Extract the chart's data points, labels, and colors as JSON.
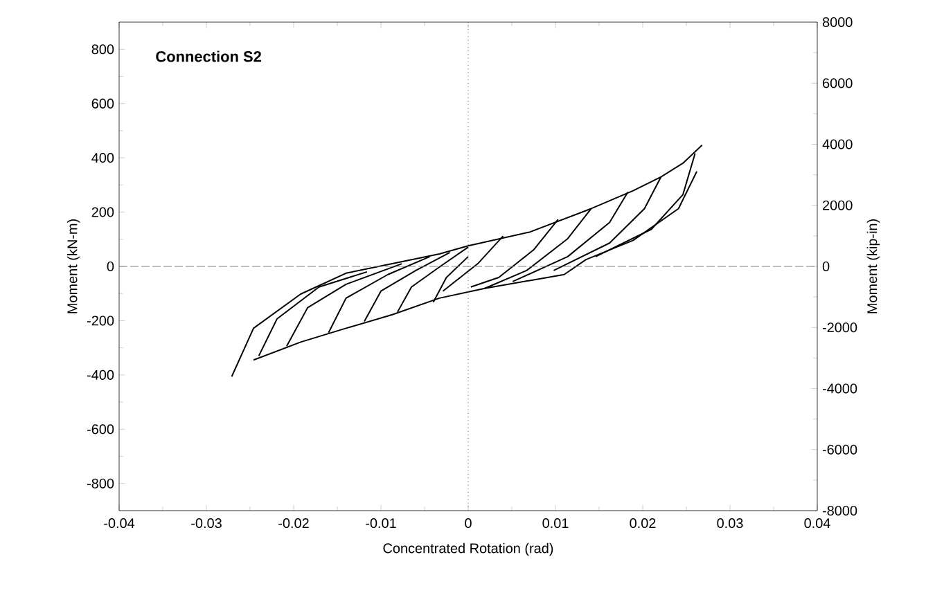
{
  "chart_data": {
    "type": "line",
    "xlabel": "Concentrated Rotation (rad)",
    "ylabel": "Moment (kN-m)",
    "y2label": "Moment (kip-in)",
    "annotations": [
      "Connection S2"
    ],
    "xlim": [
      -0.04,
      0.04
    ],
    "xticks": [
      -0.04,
      -0.03,
      -0.02,
      -0.01,
      0,
      0.01,
      0.02,
      0.03,
      0.04
    ],
    "ylim": [
      -900,
      900
    ],
    "yticks": [
      -800,
      -600,
      -400,
      -200,
      0,
      200,
      400,
      600,
      800
    ],
    "y2lim": [
      -8000,
      8000
    ],
    "y2ticks": [
      -8000,
      -6000,
      -4000,
      -2000,
      0,
      2000,
      4000,
      6000,
      8000
    ],
    "marker": "none",
    "line_style": "solid",
    "ref_lines": [
      {
        "axis": "x",
        "value": 0,
        "color": "#808080",
        "line_style": "dotted"
      },
      {
        "axis": "y",
        "value": 0,
        "color": "#808080",
        "line_style": "dashed"
      }
    ],
    "series": [
      {
        "color": "#000000",
        "x": [
          -0.0271,
          -0.0246,
          -0.0192,
          -0.014,
          -0.0087,
          -0.0033,
          0,
          0.0071,
          0.0141,
          0.0189,
          0.0221,
          0.0246,
          0.0268
        ],
        "values": [
          -406,
          -228,
          -102,
          -25,
          10,
          46,
          76,
          127,
          213,
          279,
          330,
          380,
          447
        ]
      },
      {
        "color": "#000000",
        "x": [
          -0.0246,
          -0.0192,
          -0.014,
          -0.0087,
          -0.0033,
          0.0019,
          0.011,
          0.0135,
          0.0189,
          0.0241,
          0.0262
        ],
        "values": [
          -345,
          -279,
          -228,
          -178,
          -117,
          -81,
          -30,
          25,
          96,
          213,
          350
        ]
      },
      {
        "color": "#000000",
        "x": [
          -0.0029,
          0.0011,
          0.004
        ],
        "values": [
          -91,
          10,
          112
        ]
      },
      {
        "color": "#000000",
        "x": [
          0.0003,
          0.0035,
          0.0075,
          0.0103
        ],
        "values": [
          -76,
          -41,
          61,
          173
        ]
      },
      {
        "color": "#000000",
        "x": [
          0.0019,
          0.0067,
          0.0114,
          0.0141
        ],
        "values": [
          -81,
          -15,
          102,
          213
        ]
      },
      {
        "color": "#000000",
        "x": [
          0.0051,
          0.0114,
          0.0162,
          0.0183
        ],
        "values": [
          -56,
          36,
          162,
          274
        ]
      },
      {
        "color": "#000000",
        "x": [
          0.0098,
          0.0162,
          0.0202,
          0.0221
        ],
        "values": [
          -15,
          86,
          213,
          330
        ]
      },
      {
        "color": "#000000",
        "x": [
          0.0146,
          0.021,
          0.0246,
          0.026
        ],
        "values": [
          36,
          137,
          264,
          416
        ]
      },
      {
        "color": "#000000",
        "x": [
          -0.024,
          -0.0219,
          -0.0171,
          -0.0116
        ],
        "values": [
          -330,
          -193,
          -76,
          -20
        ]
      },
      {
        "color": "#000000",
        "x": [
          -0.0208,
          -0.0184,
          -0.014,
          -0.0076
        ],
        "values": [
          -294,
          -152,
          -66,
          10
        ]
      },
      {
        "color": "#000000",
        "x": [
          -0.016,
          -0.014,
          -0.0092,
          -0.0044
        ],
        "values": [
          -244,
          -117,
          -30,
          36
        ]
      },
      {
        "color": "#000000",
        "x": [
          -0.0119,
          -0.01,
          -0.006,
          -0.0021
        ],
        "values": [
          -203,
          -91,
          -15,
          51
        ]
      },
      {
        "color": "#000000",
        "x": [
          -0.0081,
          -0.0065,
          -0.0032,
          0
        ],
        "values": [
          -168,
          -76,
          0,
          71
        ]
      },
      {
        "color": "#000000",
        "x": [
          -0.004,
          -0.0025,
          0
        ],
        "values": [
          -132,
          -41,
          36
        ]
      }
    ]
  }
}
